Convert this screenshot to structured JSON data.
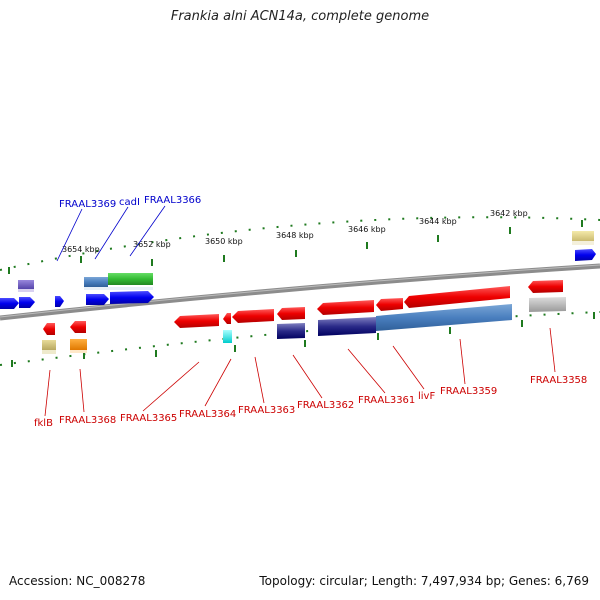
{
  "title": "Frankia alni ACN14a, complete genome",
  "footer": {
    "accession": "Accession: NC_008278",
    "summary": "Topology: circular; Length: 7,497,934 bp; Genes: 6,769"
  },
  "colors": {
    "backbone": "#8c8c8c",
    "tick": "#1f7a1f",
    "forward_label": "#0000cc",
    "reverse_label": "#cc0000"
  },
  "scale_labels": [
    "3654 kbp",
    "3652 kbp",
    "3650 kbp",
    "3648 kbp",
    "3646 kbp",
    "3644 kbp",
    "3642 kbp"
  ],
  "forward_gene_labels": [
    "FRAAL3369",
    "cadI",
    "FRAAL3366"
  ],
  "reverse_gene_labels": [
    "fklB",
    "FRAAL3368",
    "FRAAL3365",
    "FRAAL3364",
    "FRAAL3363",
    "FRAAL3362",
    "FRAAL3361",
    "livF",
    "FRAAL3359",
    "FRAAL3358"
  ]
}
